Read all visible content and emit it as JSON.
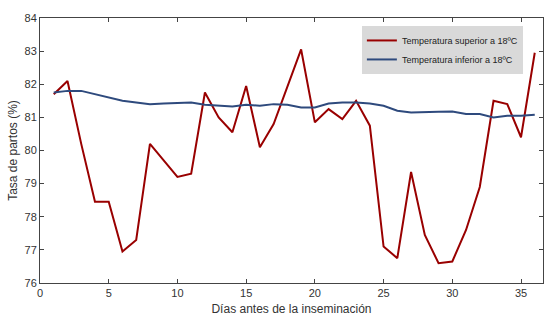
{
  "chart_data": {
    "type": "line",
    "x_label": "Días antes de la inseminación",
    "y_label": "Tasa de partos (%)",
    "x": [
      1,
      2,
      3,
      4,
      5,
      6,
      7,
      8,
      9,
      10,
      11,
      12,
      13,
      14,
      15,
      16,
      17,
      18,
      19,
      20,
      21,
      22,
      23,
      24,
      25,
      26,
      27,
      28,
      29,
      30,
      31,
      32,
      33,
      34,
      35,
      36
    ],
    "series": [
      {
        "name": "Temperatura superior a 18ºC",
        "color": "#990000",
        "values": [
          81.7,
          82.1,
          80.2,
          78.45,
          78.45,
          76.95,
          77.3,
          80.2,
          79.7,
          79.2,
          79.3,
          81.75,
          81.0,
          80.55,
          81.95,
          80.1,
          80.8,
          81.9,
          83.05,
          80.85,
          81.25,
          80.95,
          81.5,
          80.75,
          77.1,
          76.75,
          79.35,
          77.45,
          76.6,
          76.65,
          77.6,
          78.9,
          81.5,
          81.4,
          80.4,
          82.95
        ]
      },
      {
        "name": "Temperatura inferior a 18ºC",
        "color": "#2e4a7d",
        "values": [
          81.75,
          81.8,
          81.8,
          81.7,
          81.6,
          81.5,
          81.45,
          81.4,
          81.42,
          81.43,
          81.45,
          81.38,
          81.35,
          81.33,
          81.38,
          81.35,
          81.4,
          81.38,
          81.3,
          81.3,
          81.42,
          81.45,
          81.45,
          81.42,
          81.35,
          81.2,
          81.15,
          81.15,
          81.17,
          81.18,
          81.1,
          81.1,
          81.0,
          81.05,
          81.05,
          81.08
        ]
      }
    ],
    "xlim": [
      0,
      36.6
    ],
    "xticks": [
      0,
      5,
      10,
      15,
      20,
      25,
      30,
      35
    ],
    "ylim": [
      76,
      84
    ],
    "yticks": [
      76,
      77,
      78,
      79,
      80,
      81,
      82,
      83,
      84
    ],
    "grid": false,
    "legend": "upper right"
  }
}
